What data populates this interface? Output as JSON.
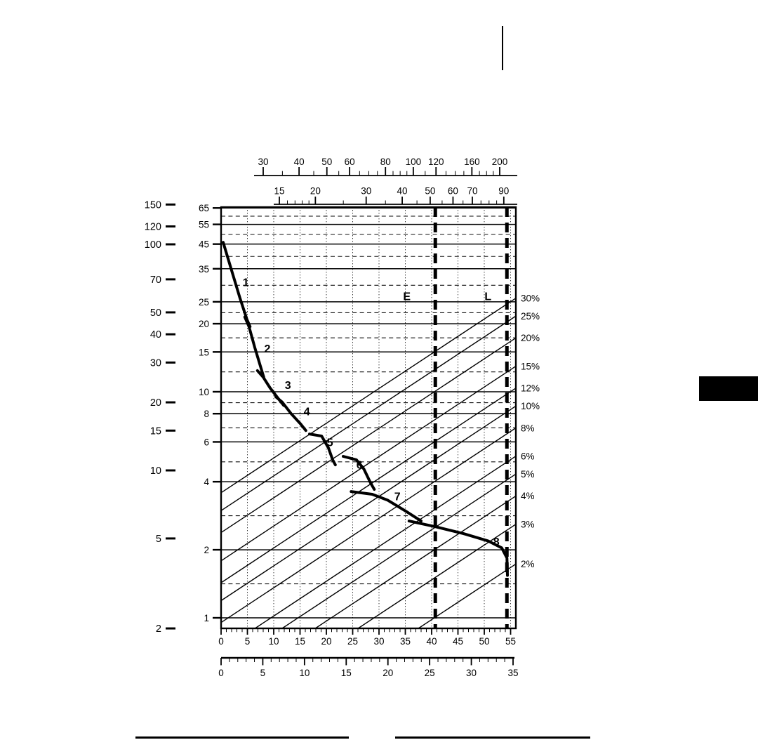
{
  "page": {
    "background": "#ffffff",
    "ink_color": "#000000"
  },
  "chart_data": {
    "type": "line",
    "axes": {
      "left_outer": {
        "scale": "log",
        "labels": [
          150,
          120,
          100,
          70,
          50,
          40,
          30,
          20,
          15,
          10,
          5,
          2
        ]
      },
      "left_inner": {
        "scale": "log",
        "labels": [
          65,
          55,
          45,
          35,
          25,
          20,
          15,
          10,
          8,
          6,
          4,
          2,
          1
        ]
      },
      "top_outer": {
        "scale": "log",
        "labels": [
          30,
          40,
          50,
          60,
          80,
          100,
          120,
          160,
          200
        ],
        "minors": [
          35,
          45,
          55,
          65,
          70,
          75,
          85,
          90,
          95,
          110,
          130,
          140,
          150,
          170,
          180,
          190
        ]
      },
      "top_inner": {
        "scale": "log",
        "labels": [
          15,
          20,
          30,
          40,
          50,
          60,
          70,
          90
        ],
        "minors": [
          16,
          17,
          18,
          19,
          25,
          35,
          45,
          55,
          65,
          75,
          80,
          85
        ]
      },
      "bottom_inner": {
        "scale": "linear",
        "labels": [
          0,
          5,
          10,
          15,
          20,
          25,
          30,
          35,
          40,
          45,
          50,
          55
        ],
        "range": [
          0,
          55
        ],
        "minor_step": 1
      },
      "bottom_outer": {
        "scale": "linear",
        "labels": [
          0,
          5,
          10,
          15,
          20,
          25,
          30,
          35
        ],
        "range": [
          0,
          35
        ],
        "minor_step": 1
      }
    },
    "grid": {
      "h_solid_values": [
        65,
        55,
        45,
        35,
        25,
        20,
        15,
        10,
        8,
        6,
        4,
        2,
        1
      ],
      "v_dotted_step_kmh": 5
    },
    "grade_lines": {
      "percents": [
        30,
        25,
        20,
        15,
        12,
        10,
        8,
        6,
        5,
        4,
        3,
        2
      ],
      "unit": "%",
      "right_edge_factor": 0.865
    },
    "gears": [
      {
        "label": "1",
        "label_at": [
          4.7,
          30.5
        ],
        "points": [
          [
            0.4,
            45.8
          ],
          [
            2.0,
            34.4
          ],
          [
            3.6,
            25.9
          ],
          [
            4.9,
            20.9
          ],
          [
            5.5,
            19.4
          ]
        ]
      },
      {
        "label": "2",
        "label_at": [
          8.8,
          15.5
        ],
        "points": [
          [
            4.5,
            21.4
          ],
          [
            5.3,
            19.4
          ],
          [
            6.4,
            15.7
          ],
          [
            7.5,
            12.9
          ],
          [
            8.1,
            11.6
          ]
        ]
      },
      {
        "label": "3",
        "label_at": [
          12.7,
          10.7
        ],
        "points": [
          [
            6.9,
            12.4
          ],
          [
            8.0,
            11.6
          ],
          [
            9.3,
            10.4
          ],
          [
            10.9,
            9.3
          ],
          [
            11.9,
            8.7
          ]
        ]
      },
      {
        "label": "4",
        "label_at": [
          16.3,
          8.2
        ],
        "points": [
          [
            10.4,
            9.5
          ],
          [
            11.6,
            9.0
          ],
          [
            13.3,
            8.0
          ],
          [
            15.1,
            7.2
          ],
          [
            16.1,
            6.74
          ]
        ]
      },
      {
        "label": "5",
        "label_at": [
          20.7,
          5.97
        ],
        "points": [
          [
            16.8,
            6.5
          ],
          [
            19.1,
            6.37
          ],
          [
            20.4,
            5.64
          ],
          [
            21.2,
            5.0
          ],
          [
            21.7,
            4.75
          ]
        ]
      },
      {
        "label": "6",
        "label_at": [
          26.3,
          4.75
        ],
        "points": [
          [
            23.2,
            5.18
          ],
          [
            25.7,
            5.0
          ],
          [
            27.1,
            4.56
          ],
          [
            28.4,
            3.95
          ],
          [
            29.1,
            3.7
          ]
        ]
      },
      {
        "label": "7",
        "label_at": [
          33.5,
          3.45
        ],
        "points": [
          [
            24.7,
            3.62
          ],
          [
            28.7,
            3.52
          ],
          [
            31.6,
            3.32
          ],
          [
            35.1,
            2.96
          ],
          [
            38.0,
            2.68
          ]
        ]
      },
      {
        "label": "8",
        "label_at": [
          52.3,
          2.17
        ],
        "points": [
          [
            35.7,
            2.68
          ],
          [
            40.7,
            2.53
          ],
          [
            46.0,
            2.36
          ],
          [
            50.7,
            2.19
          ],
          [
            53.3,
            2.04
          ],
          [
            54.3,
            1.84
          ],
          [
            54.4,
            1.54
          ]
        ]
      }
    ],
    "markers": [
      {
        "label": "E",
        "line_at_kmh": 40.7,
        "label_at": [
          35.3,
          26.4
        ]
      },
      {
        "label": "L",
        "line_at_kmh": 54.3,
        "label_at": [
          50.7,
          26.4
        ]
      }
    ]
  }
}
